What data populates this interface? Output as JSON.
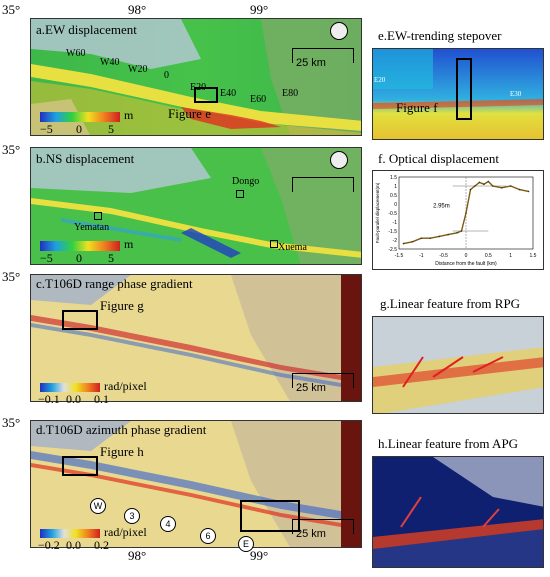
{
  "lat_label": "35°",
  "lon_labels": [
    "98°",
    "99°"
  ],
  "panels": {
    "a": {
      "title": "a.EW displacement",
      "stations": [
        "W60",
        "W40",
        "W20",
        "0",
        "E20",
        "E40",
        "E60",
        "E80"
      ],
      "box_label": "Figure e",
      "colorbar": {
        "min": "−5",
        "mid": "0",
        "max": "5",
        "unit": "m"
      },
      "scale": "25 km"
    },
    "b": {
      "title": "b.NS displacement",
      "places": [
        "Dongo",
        "Yematan",
        "Xuema"
      ],
      "colorbar": {
        "min": "−5",
        "mid": "0",
        "max": "5",
        "unit": "m"
      },
      "scale": "25 km"
    },
    "c": {
      "title": "c.T106D range phase gradient",
      "box_label": "Figure g",
      "colorbar": {
        "min": "−0.1",
        "mid": "0.0",
        "max": "0.1",
        "unit": "rad/pixel"
      },
      "scale": "25 km"
    },
    "d": {
      "title": "d.T106D azimuth phase gradient",
      "box_label": "Figure h",
      "circles": [
        "W",
        "3",
        "4",
        "6",
        "E"
      ],
      "colorbar": {
        "min": "−0.2",
        "mid": "0.0",
        "max": "0.2",
        "unit": "rad/pixel"
      },
      "scale": "25 km"
    },
    "e": {
      "title": "e.EW-trending stepover",
      "label": "Figure f",
      "ticks": [
        "E20",
        "E30"
      ]
    },
    "f": {
      "title": "f. Optical displacement",
      "chart_data": {
        "type": "line",
        "xlabel": "Distance from the fault (km)",
        "ylabel": "Fault-parallel displacement(m)",
        "x_ticks": [
          "-1.5",
          "-1",
          "-0.5",
          "0",
          "0.5",
          "1",
          "1.5"
        ],
        "y_ticks": [
          "1.5",
          "1",
          "0.5",
          "0",
          "-0.5",
          "-1",
          "-1.5",
          "-2",
          "-2.5"
        ],
        "xlim": [
          -1.5,
          1.5
        ],
        "ylim": [
          -2.5,
          1.5
        ],
        "annotation": "2.95m",
        "x": [
          -1.4,
          -1.2,
          -1.0,
          -0.8,
          -0.6,
          -0.4,
          -0.2,
          -0.1,
          0.0,
          0.1,
          0.2,
          0.3,
          0.4,
          0.5,
          0.6,
          0.8,
          1.0,
          1.2,
          1.4
        ],
        "y": [
          -2.2,
          -2.1,
          -1.9,
          -1.9,
          -1.8,
          -1.7,
          -1.6,
          -1.5,
          -0.5,
          0.8,
          1.0,
          1.2,
          1.1,
          1.25,
          1.0,
          0.9,
          1.0,
          0.8,
          0.7
        ]
      }
    },
    "g": {
      "title": "g.Linear feature from RPG"
    },
    "h": {
      "title": "h.Linear feature from APG"
    }
  }
}
